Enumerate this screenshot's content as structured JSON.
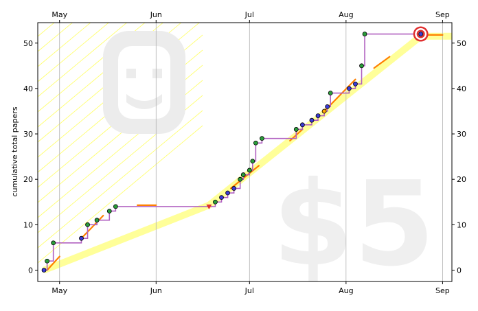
{
  "chart_data": {
    "type": "line",
    "title": "",
    "xlabel": "",
    "ylabel": "cumulative total papers",
    "x_ticks": [
      {
        "label": "May",
        "day": 0
      },
      {
        "label": "Jun",
        "day": 31
      },
      {
        "label": "Jul",
        "day": 61
      },
      {
        "label": "Aug",
        "day": 92
      },
      {
        "label": "Sep",
        "day": 123
      }
    ],
    "xlim": [
      -7,
      126
    ],
    "ylim": [
      -2.5,
      54.5
    ],
    "y_ticks": [
      0,
      10,
      20,
      30,
      40,
      50
    ],
    "grid": {
      "vertical": true,
      "horizontal": false
    },
    "watermark_text": "$5",
    "watermark_icon": "smiley-face-icon",
    "colors": {
      "step_line": "#b060c0",
      "rate_line": "#ff8000",
      "goal_band": "#ffff99",
      "guide_lines": "#ffff70",
      "dot_green": "#2a9d3a",
      "dot_blue": "#3b3bd6",
      "dot_orange": "#ffa500",
      "target": "#e03030"
    },
    "series": [
      {
        "name": "",
        "kind": "step",
        "points": [
          {
            "day": -5,
            "value": 0,
            "color": "blue"
          },
          {
            "day": -4,
            "value": 2,
            "color": "green"
          },
          {
            "day": -2,
            "value": 6,
            "color": "green"
          },
          {
            "day": 7,
            "value": 7,
            "color": "blue"
          },
          {
            "day": 9,
            "value": 10,
            "color": "green"
          },
          {
            "day": 12,
            "value": 11,
            "color": "green"
          },
          {
            "day": 16,
            "value": 13,
            "color": "green"
          },
          {
            "day": 18,
            "value": 14,
            "color": "green"
          },
          {
            "day": 48,
            "value": 14,
            "color": "red"
          },
          {
            "day": 50,
            "value": 15,
            "color": "green"
          },
          {
            "day": 52,
            "value": 16,
            "color": "blue"
          },
          {
            "day": 54,
            "value": 17,
            "color": "blue"
          },
          {
            "day": 56,
            "value": 18,
            "color": "blue"
          },
          {
            "day": 58,
            "value": 20,
            "color": "green"
          },
          {
            "day": 59,
            "value": 21,
            "color": "green"
          },
          {
            "day": 61,
            "value": 22,
            "color": "green"
          },
          {
            "day": 62,
            "value": 24,
            "color": "green"
          },
          {
            "day": 63,
            "value": 28,
            "color": "green"
          },
          {
            "day": 65,
            "value": 29,
            "color": "green"
          },
          {
            "day": 76,
            "value": 31,
            "color": "green"
          },
          {
            "day": 78,
            "value": 32,
            "color": "blue"
          },
          {
            "day": 81,
            "value": 33,
            "color": "blue"
          },
          {
            "day": 83,
            "value": 34,
            "color": "blue"
          },
          {
            "day": 85,
            "value": 35,
            "color": "orange"
          },
          {
            "day": 86,
            "value": 36,
            "color": "blue"
          },
          {
            "day": 87,
            "value": 39,
            "color": "green"
          },
          {
            "day": 93,
            "value": 40,
            "color": "blue"
          },
          {
            "day": 95,
            "value": 41,
            "color": "blue"
          },
          {
            "day": 97,
            "value": 45,
            "color": "green"
          },
          {
            "day": 98,
            "value": 52,
            "color": "green"
          },
          {
            "day": 116,
            "value": 52,
            "color": "blue"
          }
        ]
      },
      {
        "name": "",
        "kind": "rate-segments",
        "segments": [
          {
            "x": [
              -4,
              0
            ],
            "y": [
              0,
              3
            ]
          },
          {
            "x": [
              7,
              14
            ],
            "y": [
              7,
              12
            ]
          },
          {
            "x": [
              25,
              31
            ],
            "y": [
              14.3,
              14.3
            ]
          },
          {
            "x": [
              55,
              64
            ],
            "y": [
              18,
              23
            ]
          },
          {
            "x": [
              74,
              78
            ],
            "y": [
              28.5,
              31
            ]
          },
          {
            "x": [
              85,
              95
            ],
            "y": [
              35,
              42
            ]
          },
          {
            "x": [
              101,
              106
            ],
            "y": [
              44.5,
              47
            ]
          },
          {
            "x": [
              118,
              123
            ],
            "y": [
              51.8,
              51.8
            ]
          }
        ]
      }
    ],
    "goal_band": {
      "x": [
        -5,
        48,
        62,
        116,
        126
      ],
      "y": [
        0,
        14.3,
        22,
        51.5,
        51.5
      ]
    },
    "target": {
      "day": 116,
      "value": 52
    }
  }
}
